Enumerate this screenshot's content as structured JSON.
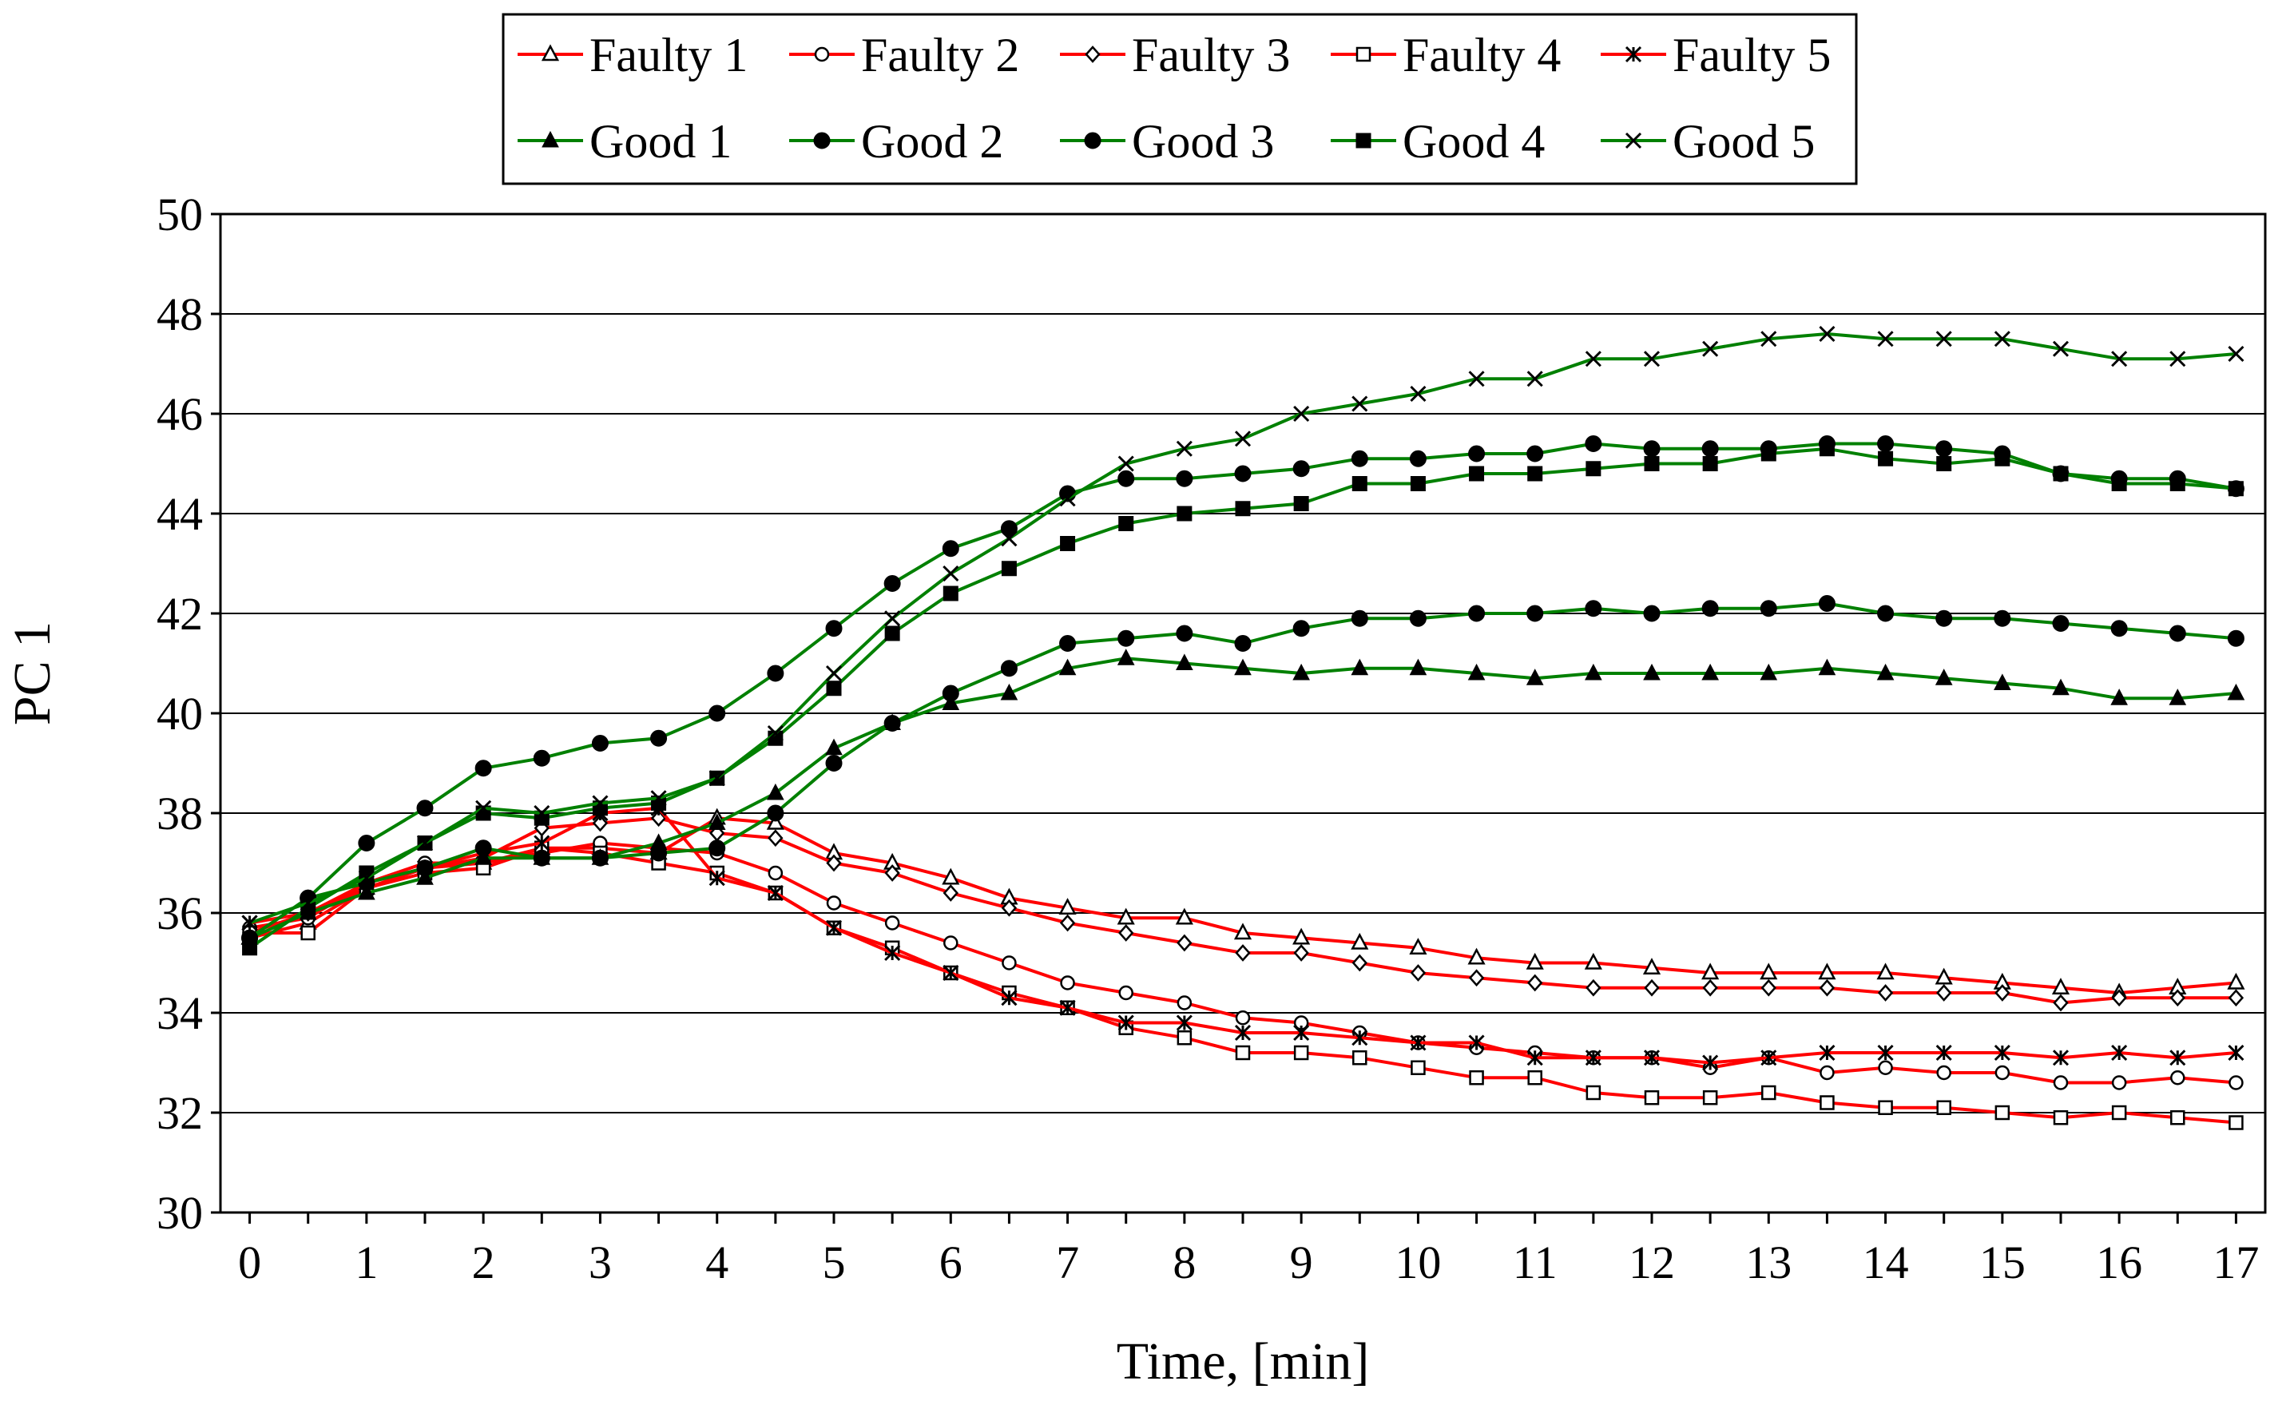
{
  "chart_data": {
    "type": "line",
    "xlabel": "Time, [min]",
    "ylabel": "PC 1",
    "xlim": [
      -0.25,
      17.25
    ],
    "ylim": [
      30,
      50
    ],
    "xticks": [
      0,
      1,
      2,
      3,
      4,
      5,
      6,
      7,
      8,
      9,
      10,
      11,
      12,
      13,
      14,
      15,
      16,
      17
    ],
    "yticks": [
      30,
      32,
      34,
      36,
      38,
      40,
      42,
      44,
      46,
      48,
      50
    ],
    "grid": "horizontal",
    "legend_position": "top-center",
    "colors": {
      "faulty": "#ff0000",
      "good": "#008000"
    },
    "x": [
      0,
      0.5,
      1,
      1.5,
      2,
      2.5,
      3,
      3.5,
      4,
      4.5,
      5,
      5.5,
      6,
      6.5,
      7,
      7.5,
      8,
      8.5,
      9,
      9.5,
      10,
      10.5,
      11,
      11.5,
      12,
      12.5,
      13,
      13.5,
      14,
      14.5,
      15,
      15.5,
      16,
      16.5,
      17
    ],
    "series": [
      {
        "name": "Faulty 1",
        "color": "#ff0000",
        "marker": "triangle-open",
        "values": [
          35.5,
          35.8,
          36.5,
          36.9,
          37.0,
          37.3,
          37.3,
          37.2,
          37.9,
          37.8,
          37.2,
          37.0,
          36.7,
          36.3,
          36.1,
          35.9,
          35.9,
          35.6,
          35.5,
          35.4,
          35.3,
          35.1,
          35.0,
          35.0,
          34.9,
          34.8,
          34.8,
          34.8,
          34.8,
          34.7,
          34.6,
          34.5,
          34.4,
          34.5,
          34.6
        ]
      },
      {
        "name": "Faulty 2",
        "color": "#ff0000",
        "marker": "circle-open",
        "values": [
          35.7,
          35.9,
          36.6,
          37.0,
          37.0,
          37.2,
          37.4,
          37.3,
          37.2,
          36.8,
          36.2,
          35.8,
          35.4,
          35.0,
          34.6,
          34.4,
          34.2,
          33.9,
          33.8,
          33.6,
          33.4,
          33.3,
          33.2,
          33.1,
          33.1,
          32.9,
          33.1,
          32.8,
          32.9,
          32.8,
          32.8,
          32.6,
          32.6,
          32.7,
          32.6
        ]
      },
      {
        "name": "Faulty 3",
        "color": "#ff0000",
        "marker": "diamond-open",
        "values": [
          35.6,
          36.0,
          36.5,
          36.9,
          37.1,
          37.7,
          37.8,
          37.9,
          37.6,
          37.5,
          37.0,
          36.8,
          36.4,
          36.1,
          35.8,
          35.6,
          35.4,
          35.2,
          35.2,
          35.0,
          34.8,
          34.7,
          34.6,
          34.5,
          34.5,
          34.5,
          34.5,
          34.5,
          34.4,
          34.4,
          34.4,
          34.2,
          34.3,
          34.3,
          34.3
        ]
      },
      {
        "name": "Faulty 4",
        "color": "#ff0000",
        "marker": "square-open",
        "values": [
          35.6,
          35.6,
          36.5,
          36.8,
          36.9,
          37.3,
          37.2,
          37.0,
          36.8,
          36.4,
          35.7,
          35.3,
          34.8,
          34.4,
          34.1,
          33.7,
          33.5,
          33.2,
          33.2,
          33.1,
          32.9,
          32.7,
          32.7,
          32.4,
          32.3,
          32.3,
          32.4,
          32.2,
          32.1,
          32.1,
          32.0,
          31.9,
          32.0,
          31.9,
          31.8
        ]
      },
      {
        "name": "Faulty 5",
        "color": "#ff0000",
        "marker": "asterisk",
        "values": [
          35.8,
          36.0,
          36.6,
          36.9,
          37.2,
          37.4,
          38.0,
          38.1,
          36.7,
          36.4,
          35.7,
          35.2,
          34.8,
          34.3,
          34.1,
          33.8,
          33.8,
          33.6,
          33.6,
          33.5,
          33.4,
          33.4,
          33.1,
          33.1,
          33.1,
          33.0,
          33.1,
          33.2,
          33.2,
          33.2,
          33.2,
          33.1,
          33.2,
          33.1,
          33.2
        ]
      },
      {
        "name": "Good 1",
        "color": "#008000",
        "marker": "triangle-filled",
        "values": [
          35.5,
          36.0,
          36.4,
          36.7,
          37.1,
          37.1,
          37.1,
          37.4,
          37.8,
          38.4,
          39.3,
          39.8,
          40.2,
          40.4,
          40.9,
          41.1,
          41.0,
          40.9,
          40.8,
          40.9,
          40.9,
          40.8,
          40.7,
          40.8,
          40.8,
          40.8,
          40.8,
          40.9,
          40.8,
          40.7,
          40.6,
          40.5,
          40.3,
          40.3,
          40.4
        ]
      },
      {
        "name": "Good 2",
        "color": "#008000",
        "marker": "circle-filled",
        "values": [
          35.5,
          36.3,
          36.6,
          36.9,
          37.3,
          37.1,
          37.1,
          37.2,
          37.3,
          38.0,
          39.0,
          39.8,
          40.4,
          40.9,
          41.4,
          41.5,
          41.6,
          41.4,
          41.7,
          41.9,
          41.9,
          42.0,
          42.0,
          42.1,
          42.0,
          42.1,
          42.1,
          42.2,
          42.0,
          41.9,
          41.9,
          41.8,
          41.7,
          41.6,
          41.5
        ]
      },
      {
        "name": "Good 3",
        "color": "#008000",
        "marker": "circle-filled",
        "values": [
          35.5,
          36.3,
          37.4,
          38.1,
          38.9,
          39.1,
          39.4,
          39.5,
          40.0,
          40.8,
          41.7,
          42.6,
          43.3,
          43.7,
          44.4,
          44.7,
          44.7,
          44.8,
          44.9,
          45.1,
          45.1,
          45.2,
          45.2,
          45.4,
          45.3,
          45.3,
          45.3,
          45.4,
          45.4,
          45.3,
          45.2,
          44.8,
          44.7,
          44.7,
          44.5
        ]
      },
      {
        "name": "Good 4",
        "color": "#008000",
        "marker": "square-filled",
        "values": [
          35.3,
          36.1,
          36.8,
          37.4,
          38.0,
          37.9,
          38.1,
          38.2,
          38.7,
          39.5,
          40.5,
          41.6,
          42.4,
          42.9,
          43.4,
          43.8,
          44.0,
          44.1,
          44.2,
          44.6,
          44.6,
          44.8,
          44.8,
          44.9,
          45.0,
          45.0,
          45.2,
          45.3,
          45.1,
          45.0,
          45.1,
          44.8,
          44.6,
          44.6,
          44.5
        ]
      },
      {
        "name": "Good 5",
        "color": "#008000",
        "marker": "x",
        "values": [
          35.8,
          36.2,
          36.7,
          37.4,
          38.1,
          38.0,
          38.2,
          38.3,
          38.7,
          39.6,
          40.8,
          41.9,
          42.8,
          43.5,
          44.3,
          45.0,
          45.3,
          45.5,
          46.0,
          46.2,
          46.4,
          46.7,
          46.7,
          47.1,
          47.1,
          47.3,
          47.5,
          47.6,
          47.5,
          47.5,
          47.5,
          47.3,
          47.1,
          47.1,
          47.2
        ]
      }
    ]
  }
}
